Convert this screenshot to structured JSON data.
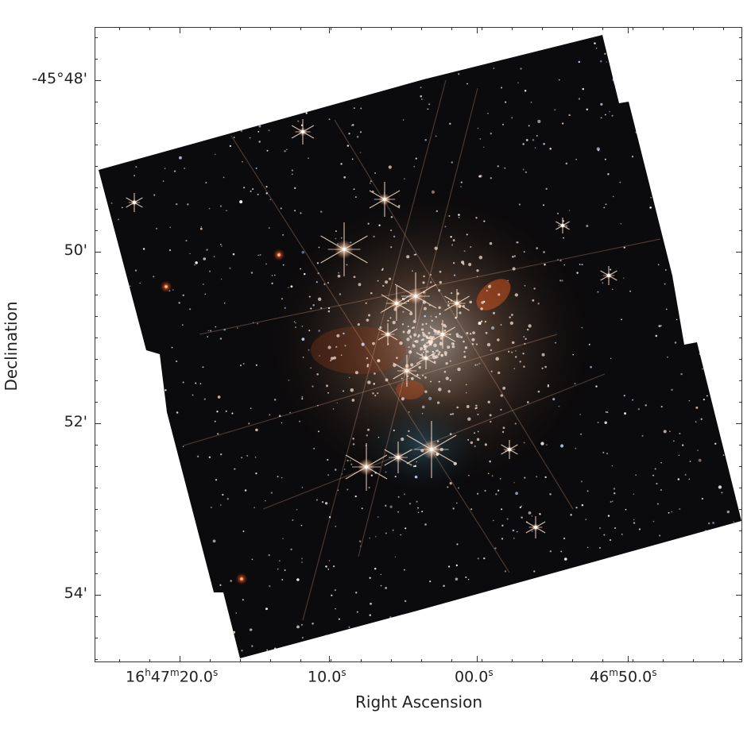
{
  "axes": {
    "ylabel": "Declination",
    "xlabel": "Right Ascension",
    "yticks": [
      {
        "label": "-45°48'"
      },
      {
        "label": "50'"
      },
      {
        "label": "52'"
      },
      {
        "label": "54'"
      }
    ],
    "xticks": [
      {
        "h": "16",
        "hu": "h",
        "m": "47",
        "mu": "m",
        "s": "20.0",
        "su": "s"
      },
      {
        "s": "10.0",
        "su": "s"
      },
      {
        "s": "00.0",
        "su": "s"
      },
      {
        "m": "46",
        "mu": "m",
        "s": "50.0",
        "su": "s"
      }
    ]
  },
  "image": {
    "subject": "star-cluster-mosaic",
    "background_color": "#0b0a0c"
  }
}
